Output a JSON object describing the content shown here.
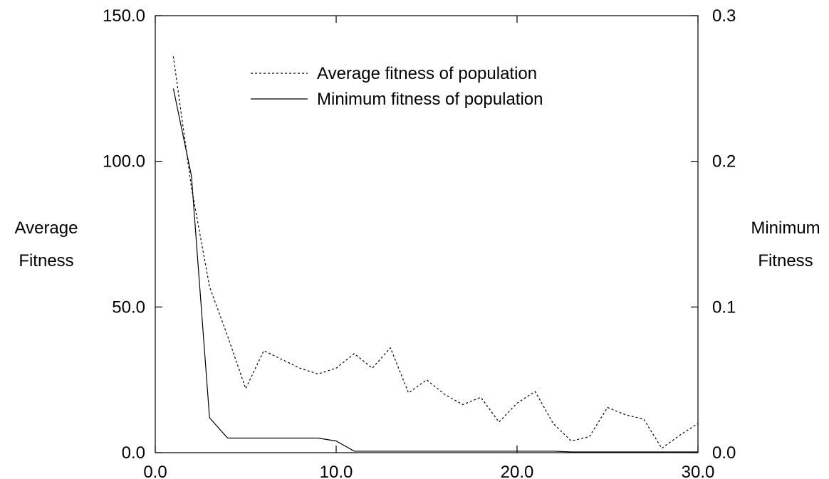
{
  "chart_data": {
    "type": "line",
    "title": "",
    "xlabel": "",
    "xlim": [
      0,
      30
    ],
    "x_ticks": [
      "0.0",
      "10.0",
      "20.0",
      "30.0"
    ],
    "y_left": {
      "label_lines": [
        "Average",
        "Fitness"
      ],
      "lim": [
        0,
        150
      ],
      "ticks": [
        "0.0",
        "50.0",
        "100.0",
        "150.0"
      ]
    },
    "y_right": {
      "label_lines": [
        "Minimum",
        "Fitness"
      ],
      "lim": [
        0,
        0.3
      ],
      "ticks": [
        "0.0",
        "0.1",
        "0.2",
        "0.3"
      ]
    },
    "grid": false,
    "legend_position": "top-center",
    "series": [
      {
        "name": "Average fitness of population",
        "axis": "left",
        "style": "dotted",
        "color": "#000000",
        "x": [
          1,
          2,
          3,
          4,
          5,
          6,
          7,
          8,
          9,
          10,
          11,
          12,
          13,
          14,
          15,
          16,
          17,
          18,
          19,
          20,
          21,
          22,
          23,
          24,
          25,
          26,
          27,
          28,
          29,
          30
        ],
        "y": [
          136,
          91,
          57,
          40,
          22,
          35,
          32,
          29,
          27,
          29,
          34,
          29,
          36,
          20.5,
          25,
          20,
          16.5,
          19,
          10.5,
          17,
          21,
          10,
          4,
          5.5,
          15.5,
          13,
          11.5,
          1.5,
          6,
          10
        ]
      },
      {
        "name": "Minimum fitness of population",
        "axis": "right",
        "style": "solid",
        "color": "#000000",
        "x": [
          1,
          2,
          3,
          4,
          5,
          6,
          7,
          8,
          9,
          10,
          11,
          12,
          13,
          14,
          15,
          16,
          17,
          18,
          19,
          20,
          21,
          22,
          23,
          24,
          25,
          26,
          27,
          28,
          29,
          30
        ],
        "y": [
          0.25,
          0.19,
          0.024,
          0.01,
          0.01,
          0.01,
          0.01,
          0.01,
          0.01,
          0.008,
          0.001,
          0.001,
          0.001,
          0.001,
          0.001,
          0.001,
          0.001,
          0.001,
          0.001,
          0.001,
          0.001,
          0.001,
          0.0005,
          0.0005,
          0.0005,
          0.0005,
          0.0005,
          0.0005,
          0.0005,
          0.0005
        ]
      }
    ]
  }
}
